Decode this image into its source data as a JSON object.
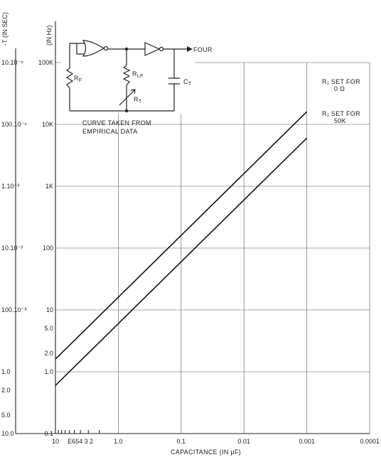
{
  "chart_data": {
    "type": "line",
    "xlabel": "CAPACITANCE (IN μF)",
    "x_ticks": [
      "10",
      "E654 3 2",
      "1.0",
      "0.1",
      "0.01",
      "0.001",
      "0.0001"
    ],
    "y_freq_header": "(IN Hz)",
    "y_period_header": "-T (IN SEC)",
    "y_freq_ticks": [
      "100K",
      "10K",
      "1K",
      "100",
      "10",
      "5.0",
      "2.0",
      "1.0",
      "0.1"
    ],
    "y_period_ticks": [
      "10.10⁻⁶",
      "100.10⁻⁶",
      "1.10⁻³",
      "10.10⁻³",
      "100.10⁻³",
      "1.0",
      "2.0",
      "5.0",
      "10.0"
    ],
    "series": [
      {
        "label_line1": "R₁ SET FOR",
        "label_line2": "0 Ω",
        "points": [
          [
            10,
            1.6
          ],
          [
            0.001,
            16000
          ]
        ]
      },
      {
        "label_line1": "R₁ SET FOR",
        "label_line2": "50K",
        "points": [
          [
            10,
            0.6
          ],
          [
            0.001,
            6000
          ]
        ]
      }
    ],
    "x_scale": "log reversed",
    "y_scale": "log",
    "xlim": [
      10,
      0.0001
    ],
    "ylim": [
      0.1,
      100000
    ],
    "grid": true
  },
  "inset": {
    "output_label": "FOUR",
    "rf_label": "R_F",
    "rlf_label": "R_LF",
    "rt_label": "R_T",
    "ct_label": "C_T",
    "note_line1": "CURVE TAKEN FROM",
    "note_line2": "EMPIRICAL DATA"
  }
}
